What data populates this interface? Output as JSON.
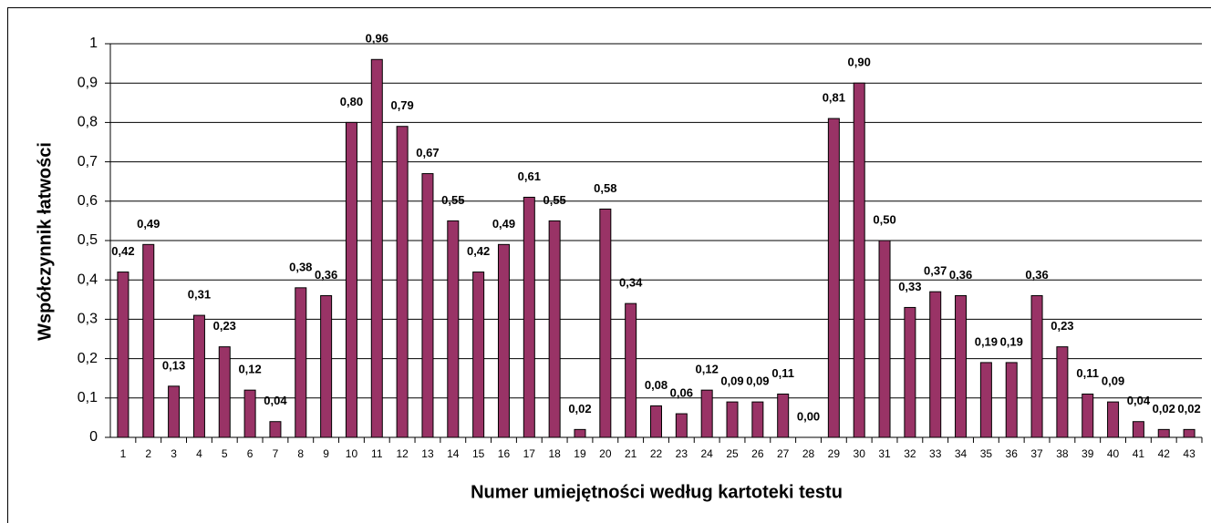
{
  "chart_data": {
    "type": "bar",
    "xlabel": "Numer umiejętności według kartoteki testu",
    "ylabel": "Współczynnik łatwości",
    "categories": [
      "1",
      "2",
      "3",
      "4",
      "5",
      "6",
      "7",
      "8",
      "9",
      "10",
      "11",
      "12",
      "13",
      "14",
      "15",
      "16",
      "17",
      "18",
      "19",
      "20",
      "21",
      "22",
      "23",
      "24",
      "25",
      "26",
      "27",
      "28",
      "29",
      "30",
      "31",
      "32",
      "33",
      "34",
      "35",
      "36",
      "37",
      "38",
      "39",
      "40",
      "41",
      "42",
      "43"
    ],
    "values": [
      0.42,
      0.49,
      0.13,
      0.31,
      0.23,
      0.12,
      0.04,
      0.38,
      0.36,
      0.8,
      0.96,
      0.79,
      0.67,
      0.55,
      0.42,
      0.49,
      0.61,
      0.55,
      0.02,
      0.58,
      0.34,
      0.08,
      0.06,
      0.12,
      0.09,
      0.09,
      0.11,
      0.0,
      0.81,
      0.9,
      0.5,
      0.33,
      0.37,
      0.36,
      0.19,
      0.19,
      0.36,
      0.23,
      0.11,
      0.09,
      0.04,
      0.02,
      0.02
    ],
    "value_labels": [
      "0,42",
      "0,49",
      "0,13",
      "0,31",
      "0,23",
      "0,12",
      "0,04",
      "0,38",
      "0,36",
      "0,80",
      "0,96",
      "0,79",
      "0,67",
      "0,55",
      "0,42",
      "0,49",
      "0,61",
      "0,55",
      "0,02",
      "0,58",
      "0,34",
      "0,08",
      "0,06",
      "0,12",
      "0,09",
      "0,09",
      "0,11",
      "0,00",
      "0,81",
      "0,90",
      "0,50",
      "0,33",
      "0,37",
      "0,36",
      "0,19",
      "0,19",
      "0,36",
      "0,23",
      "0,11",
      "0,09",
      "0,04",
      "0,02",
      "0,02"
    ],
    "color": "#993366",
    "ylim": [
      0,
      1
    ],
    "yticks": [
      0,
      {
        "value": 0.1,
        "label": "0,1"
      },
      {
        "value": 0.2,
        "label": "0,2"
      },
      {
        "value": 0.3,
        "label": "0,3"
      },
      {
        "value": 0.4,
        "label": "0,4"
      },
      {
        "value": 0.5,
        "label": "0,5"
      },
      {
        "value": 0.6,
        "label": "0,6"
      },
      {
        "value": 0.7,
        "label": "0,7"
      },
      {
        "value": 0.8,
        "label": "0,8"
      },
      {
        "value": 0.9,
        "label": "0,9"
      },
      1
    ],
    "grid": true
  }
}
